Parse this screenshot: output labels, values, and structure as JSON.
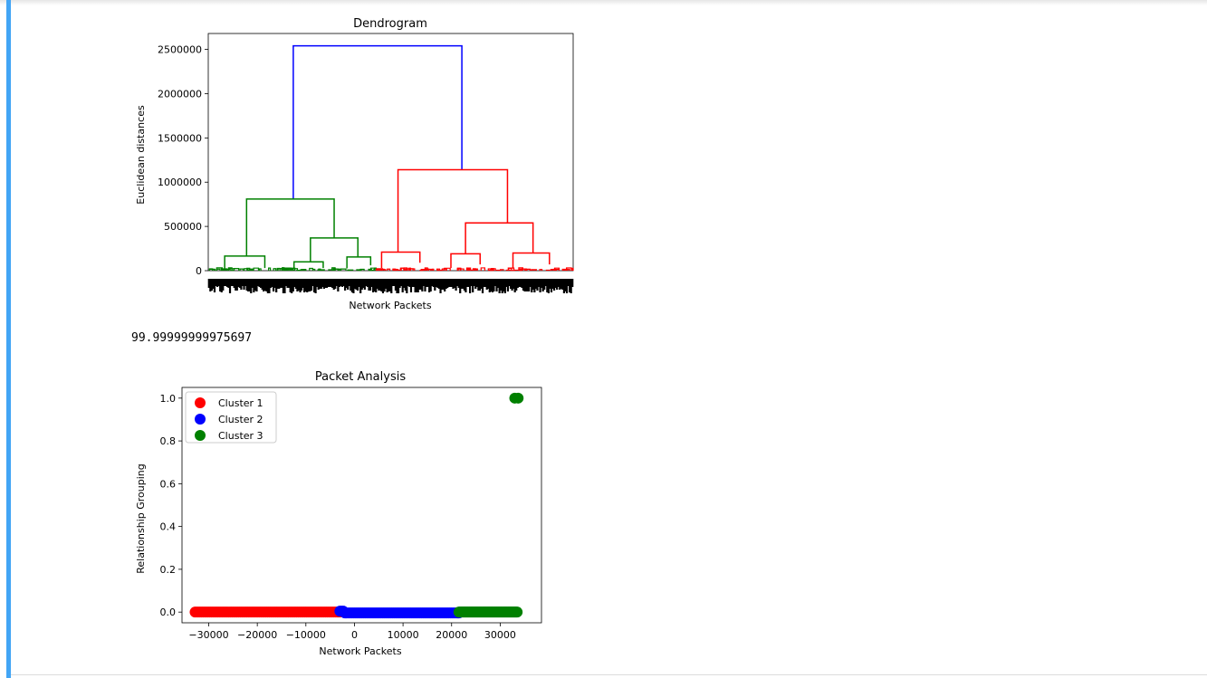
{
  "output": {
    "value_text": "99.99999999975697"
  },
  "chart_data": [
    {
      "type": "dendrogram",
      "title": "Dendrogram",
      "xlabel": "Network Packets",
      "ylabel": "Euclidean distances",
      "ylim": [
        0,
        2680000
      ],
      "yticks": [
        0,
        500000,
        1000000,
        1500000,
        2000000,
        2500000
      ],
      "ytick_labels": [
        "0",
        "500000",
        "1000000",
        "1500000",
        "2000000",
        "2500000"
      ],
      "xticklabels_dense": true,
      "colors": {
        "root": "#0000ff",
        "left_cluster": "#008000",
        "right_cluster": "#ff0000"
      },
      "root_height": 2540000,
      "links": [
        {
          "color": "blue",
          "x1": 0.233,
          "y1": 810000,
          "x2": 0.695,
          "y2": 1140000,
          "h": 2540000
        },
        {
          "color": "green",
          "x1": 0.105,
          "y1": 165000,
          "x2": 0.345,
          "y2": 370000,
          "h": 810000
        },
        {
          "color": "green",
          "x1": 0.045,
          "y1": 20000,
          "x2": 0.155,
          "y2": 30000,
          "h": 165000
        },
        {
          "color": "green",
          "x1": 0.28,
          "y1": 100000,
          "x2": 0.41,
          "y2": 155000,
          "h": 370000
        },
        {
          "color": "green",
          "x1": 0.235,
          "y1": 20000,
          "x2": 0.315,
          "y2": 30000,
          "h": 100000
        },
        {
          "color": "green",
          "x1": 0.38,
          "y1": 25000,
          "x2": 0.445,
          "y2": 60000,
          "h": 155000
        },
        {
          "color": "red",
          "x1": 0.52,
          "y1": 210000,
          "x2": 0.82,
          "y2": 540000,
          "h": 1140000
        },
        {
          "color": "red",
          "x1": 0.475,
          "y1": 30000,
          "x2": 0.58,
          "y2": 90000,
          "h": 210000
        },
        {
          "color": "red",
          "x1": 0.705,
          "y1": 190000,
          "x2": 0.89,
          "y2": 200000,
          "h": 540000
        },
        {
          "color": "red",
          "x1": 0.665,
          "y1": 30000,
          "x2": 0.745,
          "y2": 70000,
          "h": 190000
        },
        {
          "color": "red",
          "x1": 0.835,
          "y1": 30000,
          "x2": 0.935,
          "y2": 70000,
          "h": 200000
        }
      ]
    },
    {
      "type": "scatter",
      "title": "Packet Analysis",
      "xlabel": "Network Packets",
      "ylabel": "Relationship Grouping",
      "xlim": [
        -35500,
        38500
      ],
      "ylim": [
        -0.05,
        1.05
      ],
      "xticks": [
        -30000,
        -20000,
        -10000,
        0,
        10000,
        20000,
        30000
      ],
      "xtick_labels": [
        "−30000",
        "−20000",
        "−10000",
        "0",
        "10000",
        "20000",
        "30000"
      ],
      "yticks": [
        0.0,
        0.2,
        0.4,
        0.6,
        0.8,
        1.0
      ],
      "ytick_labels": [
        "0.0",
        "0.2",
        "0.4",
        "0.6",
        "0.8",
        "1.0"
      ],
      "legend_position": "upper-left",
      "series": [
        {
          "name": "Cluster 1",
          "color": "#ff0000",
          "x_range": [
            -32800,
            -3000
          ],
          "y": [
            0
          ]
        },
        {
          "name": "Cluster 2",
          "color": "#0000ff",
          "x_range": [
            -3000,
            21500
          ],
          "y": [
            0
          ]
        },
        {
          "name": "Cluster 3",
          "color": "#008000",
          "x_range": [
            21500,
            33500
          ],
          "y": [
            0
          ],
          "extra_points": [
            [
              33000,
              1.0
            ],
            [
              33700,
              1.0
            ]
          ]
        }
      ]
    }
  ]
}
